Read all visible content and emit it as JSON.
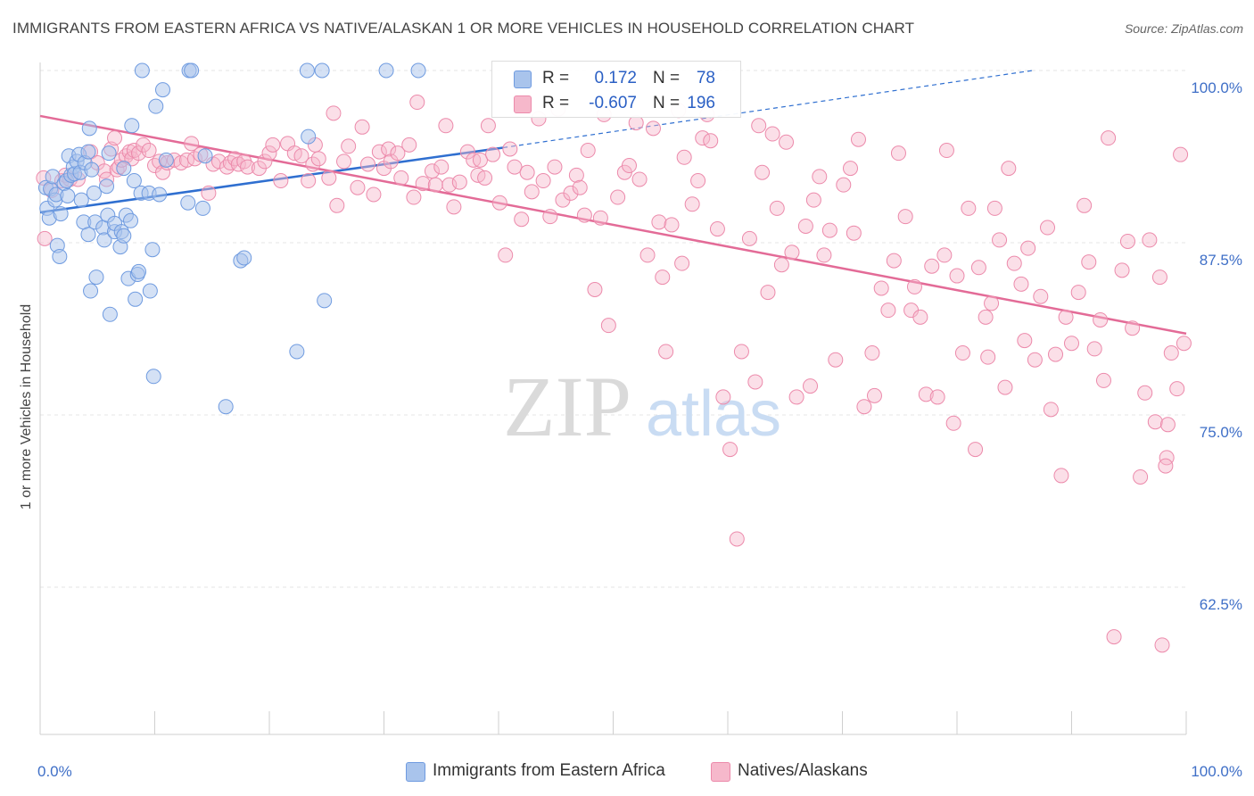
{
  "title": "IMMIGRANTS FROM EASTERN AFRICA VS NATIVE/ALASKAN 1 OR MORE VEHICLES IN HOUSEHOLD CORRELATION CHART",
  "source": "Source: ZipAtlas.com",
  "watermark": {
    "zip": "ZIP",
    "atlas": "atlas"
  },
  "legend": {
    "rows": [
      {
        "r_label": "R =",
        "r_value": "0.172",
        "n_label": "N =",
        "n_value": "78"
      },
      {
        "r_label": "R =",
        "r_value": "-0.607",
        "n_label": "N =",
        "n_value": "196"
      }
    ]
  },
  "chart_data": {
    "type": "scatter",
    "title": "IMMIGRANTS FROM EASTERN AFRICA VS NATIVE/ALASKAN 1 OR MORE VEHICLES IN HOUSEHOLD CORRELATION CHART",
    "xlabel": "",
    "ylabel": "1 or more Vehicles in Household",
    "x_tick_labels": [
      "0.0%",
      "100.0%"
    ],
    "y_tick_labels": [
      "100.0%",
      "87.5%",
      "75.0%",
      "62.5%"
    ],
    "y_tick_values": [
      100.0,
      87.5,
      75.0,
      62.5
    ],
    "xlim": [
      0,
      100
    ],
    "ylim": [
      53.5,
      101
    ],
    "grid": true,
    "legend_position": "top-center",
    "colors": {
      "blue_fill": "#a9c4ec",
      "blue_stroke": "#6f9be0",
      "blue_line": "#2f6fd0",
      "pink_fill": "#f6b8cb",
      "pink_stroke": "#ec8aab",
      "pink_line": "#e36b97",
      "tick_label": "#3f6fc7"
    },
    "series": [
      {
        "name": "Immigrants from Eastern Africa",
        "color": "#6f9be0",
        "trend": {
          "x": [
            0,
            40.4,
            86.6
          ],
          "y": [
            89.7,
            94.4,
            100.0
          ],
          "solid_until": 40.4
        },
        "points": [
          [
            0.5,
            91.5
          ],
          [
            0.6,
            90.0
          ],
          [
            0.8,
            89.3
          ],
          [
            0.9,
            91.4
          ],
          [
            1.1,
            92.3
          ],
          [
            1.3,
            90.6
          ],
          [
            1.4,
            91.0
          ],
          [
            1.5,
            87.3
          ],
          [
            1.7,
            86.5
          ],
          [
            1.8,
            89.6
          ],
          [
            2.1,
            91.8
          ],
          [
            2.3,
            92.0
          ],
          [
            2.4,
            90.9
          ],
          [
            2.5,
            93.8
          ],
          [
            2.7,
            92.4
          ],
          [
            2.9,
            93.0
          ],
          [
            3.0,
            92.5
          ],
          [
            3.2,
            93.4
          ],
          [
            3.4,
            93.9
          ],
          [
            3.5,
            92.6
          ],
          [
            3.6,
            90.6
          ],
          [
            3.8,
            89.0
          ],
          [
            3.9,
            93.3
          ],
          [
            4.2,
            88.1
          ],
          [
            4.2,
            94.1
          ],
          [
            4.3,
            95.8
          ],
          [
            4.4,
            84.0
          ],
          [
            4.5,
            92.8
          ],
          [
            4.7,
            91.1
          ],
          [
            4.8,
            89.0
          ],
          [
            4.9,
            85.0
          ],
          [
            5.5,
            88.6
          ],
          [
            5.6,
            87.7
          ],
          [
            5.8,
            91.6
          ],
          [
            5.9,
            89.5
          ],
          [
            6.0,
            94.0
          ],
          [
            6.1,
            82.3
          ],
          [
            6.5,
            88.3
          ],
          [
            6.5,
            88.9
          ],
          [
            7.0,
            87.2
          ],
          [
            7.1,
            88.3
          ],
          [
            7.3,
            88.0
          ],
          [
            7.3,
            92.9
          ],
          [
            7.5,
            89.5
          ],
          [
            7.7,
            84.9
          ],
          [
            7.9,
            89.1
          ],
          [
            8.0,
            96.0
          ],
          [
            8.2,
            92.0
          ],
          [
            8.3,
            83.4
          ],
          [
            8.5,
            85.2
          ],
          [
            8.6,
            85.4
          ],
          [
            8.8,
            91.1
          ],
          [
            8.9,
            100.0
          ],
          [
            9.5,
            91.1
          ],
          [
            9.6,
            84.0
          ],
          [
            9.8,
            87.0
          ],
          [
            9.9,
            77.8
          ],
          [
            10.1,
            97.4
          ],
          [
            10.4,
            91.0
          ],
          [
            10.7,
            98.6
          ],
          [
            11.0,
            93.5
          ],
          [
            12.9,
            90.4
          ],
          [
            13.0,
            100.0
          ],
          [
            13.2,
            100.0
          ],
          [
            14.2,
            90.0
          ],
          [
            14.4,
            93.8
          ],
          [
            16.2,
            75.6
          ],
          [
            17.5,
            86.2
          ],
          [
            17.8,
            86.4
          ],
          [
            22.4,
            79.6
          ],
          [
            23.3,
            100.0
          ],
          [
            23.4,
            95.2
          ],
          [
            24.6,
            100.0
          ],
          [
            24.8,
            83.3
          ],
          [
            30.2,
            100.0
          ],
          [
            33.0,
            100.0
          ]
        ]
      },
      {
        "name": "Natives/Alaskans",
        "color": "#ec8aab",
        "trend": {
          "x": [
            0,
            100
          ],
          "y": [
            96.7,
            80.9
          ]
        },
        "points": [
          [
            0.3,
            92.2
          ],
          [
            0.4,
            87.8
          ],
          [
            1.0,
            91.3
          ],
          [
            1.9,
            92.0
          ],
          [
            2.2,
            92.4
          ],
          [
            2.6,
            92.1
          ],
          [
            3.3,
            92.1
          ],
          [
            4.4,
            94.1
          ],
          [
            5.0,
            93.3
          ],
          [
            5.6,
            92.7
          ],
          [
            5.8,
            92.1
          ],
          [
            6.2,
            94.3
          ],
          [
            6.5,
            95.1
          ],
          [
            6.7,
            92.8
          ],
          [
            6.9,
            93.0
          ],
          [
            7.1,
            93.5
          ],
          [
            7.5,
            93.8
          ],
          [
            7.8,
            94.1
          ],
          [
            8.0,
            93.6
          ],
          [
            8.2,
            94.2
          ],
          [
            8.6,
            94.0
          ],
          [
            9.0,
            94.6
          ],
          [
            9.5,
            94.2
          ],
          [
            10.0,
            93.1
          ],
          [
            10.4,
            93.4
          ],
          [
            10.7,
            92.6
          ],
          [
            11.1,
            93.3
          ],
          [
            11.7,
            93.5
          ],
          [
            12.3,
            93.3
          ],
          [
            12.8,
            93.5
          ],
          [
            13.2,
            94.7
          ],
          [
            13.5,
            93.6
          ],
          [
            14.0,
            93.9
          ],
          [
            14.7,
            91.1
          ],
          [
            15.1,
            93.2
          ],
          [
            15.6,
            93.4
          ],
          [
            16.3,
            93.0
          ],
          [
            16.6,
            93.3
          ],
          [
            17.0,
            93.6
          ],
          [
            17.3,
            93.2
          ],
          [
            17.8,
            93.4
          ],
          [
            18.1,
            93.0
          ],
          [
            19.1,
            92.9
          ],
          [
            19.6,
            93.4
          ],
          [
            20.0,
            94.0
          ],
          [
            20.3,
            94.6
          ],
          [
            21.0,
            92.0
          ],
          [
            21.6,
            94.7
          ],
          [
            22.2,
            94.0
          ],
          [
            22.8,
            93.8
          ],
          [
            23.4,
            92.0
          ],
          [
            23.8,
            93.2
          ],
          [
            24.0,
            94.6
          ],
          [
            24.3,
            93.6
          ],
          [
            25.2,
            92.2
          ],
          [
            25.6,
            96.9
          ],
          [
            25.9,
            90.2
          ],
          [
            26.5,
            93.4
          ],
          [
            26.9,
            94.5
          ],
          [
            27.7,
            91.5
          ],
          [
            28.1,
            95.9
          ],
          [
            28.6,
            93.2
          ],
          [
            29.1,
            91.0
          ],
          [
            29.6,
            94.1
          ],
          [
            30.0,
            92.9
          ],
          [
            30.4,
            94.3
          ],
          [
            30.6,
            93.4
          ],
          [
            31.2,
            94.0
          ],
          [
            31.5,
            92.2
          ],
          [
            32.2,
            94.6
          ],
          [
            32.6,
            90.8
          ],
          [
            32.9,
            97.7
          ],
          [
            33.4,
            91.8
          ],
          [
            34.2,
            92.7
          ],
          [
            34.5,
            91.7
          ],
          [
            35.0,
            93.0
          ],
          [
            35.4,
            96.0
          ],
          [
            35.7,
            91.7
          ],
          [
            36.1,
            90.1
          ],
          [
            36.6,
            91.9
          ],
          [
            37.3,
            94.1
          ],
          [
            37.8,
            93.5
          ],
          [
            38.2,
            92.4
          ],
          [
            38.4,
            93.5
          ],
          [
            38.8,
            92.2
          ],
          [
            39.1,
            96.0
          ],
          [
            39.5,
            93.9
          ],
          [
            40.1,
            90.4
          ],
          [
            40.6,
            86.6
          ],
          [
            41.0,
            94.3
          ],
          [
            41.4,
            93.0
          ],
          [
            42.0,
            89.2
          ],
          [
            42.5,
            92.6
          ],
          [
            42.9,
            91.2
          ],
          [
            43.5,
            96.5
          ],
          [
            43.9,
            92.0
          ],
          [
            44.5,
            89.4
          ],
          [
            44.9,
            93.0
          ],
          [
            45.2,
            97.2
          ],
          [
            45.6,
            90.6
          ],
          [
            46.3,
            91.1
          ],
          [
            46.8,
            92.4
          ],
          [
            47.1,
            91.5
          ],
          [
            47.5,
            89.5
          ],
          [
            47.8,
            94.2
          ],
          [
            48.4,
            84.1
          ],
          [
            48.9,
            89.3
          ],
          [
            49.2,
            96.8
          ],
          [
            49.6,
            81.5
          ],
          [
            50.4,
            90.8
          ],
          [
            51.0,
            92.6
          ],
          [
            51.4,
            93.1
          ],
          [
            52.0,
            96.2
          ],
          [
            52.3,
            92.1
          ],
          [
            53.0,
            86.6
          ],
          [
            53.5,
            95.8
          ],
          [
            54.0,
            89.0
          ],
          [
            54.3,
            85.0
          ],
          [
            54.6,
            79.6
          ],
          [
            55.1,
            88.8
          ],
          [
            55.7,
            97.1
          ],
          [
            56.0,
            86.0
          ],
          [
            56.2,
            93.7
          ],
          [
            56.9,
            90.3
          ],
          [
            57.4,
            92.0
          ],
          [
            57.8,
            95.1
          ],
          [
            58.2,
            96.8
          ],
          [
            58.5,
            94.9
          ],
          [
            59.1,
            88.5
          ],
          [
            59.6,
            76.3
          ],
          [
            60.2,
            72.5
          ],
          [
            60.8,
            66.0
          ],
          [
            61.2,
            79.6
          ],
          [
            61.9,
            87.8
          ],
          [
            62.4,
            77.4
          ],
          [
            62.7,
            96.0
          ],
          [
            63.0,
            92.6
          ],
          [
            63.5,
            83.9
          ],
          [
            63.9,
            95.4
          ],
          [
            64.3,
            90.0
          ],
          [
            64.7,
            85.9
          ],
          [
            65.1,
            94.8
          ],
          [
            65.6,
            86.8
          ],
          [
            66.0,
            76.3
          ],
          [
            66.8,
            88.7
          ],
          [
            67.2,
            77.1
          ],
          [
            67.5,
            90.6
          ],
          [
            68.0,
            92.3
          ],
          [
            68.4,
            86.6
          ],
          [
            68.9,
            88.4
          ],
          [
            69.4,
            79.0
          ],
          [
            70.1,
            91.7
          ],
          [
            70.7,
            92.9
          ],
          [
            71.0,
            88.2
          ],
          [
            71.4,
            95.0
          ],
          [
            71.9,
            75.6
          ],
          [
            72.6,
            79.5
          ],
          [
            72.8,
            76.4
          ],
          [
            73.4,
            84.2
          ],
          [
            74.0,
            82.6
          ],
          [
            74.5,
            86.2
          ],
          [
            74.9,
            94.0
          ],
          [
            75.5,
            89.4
          ],
          [
            76.0,
            82.6
          ],
          [
            76.3,
            84.3
          ],
          [
            76.8,
            82.1
          ],
          [
            77.3,
            76.5
          ],
          [
            77.8,
            85.8
          ],
          [
            78.3,
            76.3
          ],
          [
            78.9,
            86.6
          ],
          [
            79.1,
            94.2
          ],
          [
            79.7,
            74.4
          ],
          [
            80.0,
            85.1
          ],
          [
            80.5,
            79.5
          ],
          [
            81.0,
            90.0
          ],
          [
            81.6,
            72.5
          ],
          [
            81.9,
            85.7
          ],
          [
            82.5,
            82.1
          ],
          [
            82.7,
            79.2
          ],
          [
            83.0,
            83.1
          ],
          [
            83.3,
            90.0
          ],
          [
            83.7,
            87.7
          ],
          [
            84.2,
            77.0
          ],
          [
            84.5,
            92.9
          ],
          [
            85.0,
            86.0
          ],
          [
            85.6,
            84.5
          ],
          [
            85.9,
            80.4
          ],
          [
            86.2,
            87.1
          ],
          [
            86.8,
            79.0
          ],
          [
            87.3,
            83.6
          ],
          [
            87.9,
            88.6
          ],
          [
            88.2,
            75.4
          ],
          [
            88.6,
            79.4
          ],
          [
            89.1,
            70.6
          ],
          [
            89.5,
            82.1
          ],
          [
            90.0,
            80.2
          ],
          [
            90.6,
            83.9
          ],
          [
            91.1,
            90.2
          ],
          [
            91.5,
            86.1
          ],
          [
            92.0,
            79.8
          ],
          [
            92.5,
            81.9
          ],
          [
            92.8,
            77.5
          ],
          [
            93.2,
            95.1
          ],
          [
            93.7,
            58.9
          ],
          [
            94.4,
            85.5
          ],
          [
            94.9,
            87.6
          ],
          [
            95.3,
            81.3
          ],
          [
            96.0,
            70.5
          ],
          [
            96.4,
            76.6
          ],
          [
            96.8,
            87.7
          ],
          [
            97.3,
            74.5
          ],
          [
            97.7,
            85.0
          ],
          [
            98.3,
            71.9
          ],
          [
            98.7,
            79.5
          ],
          [
            99.2,
            76.9
          ],
          [
            99.5,
            93.9
          ],
          [
            99.8,
            80.2
          ],
          [
            97.9,
            58.3
          ],
          [
            98.2,
            71.3
          ],
          [
            98.4,
            74.3
          ]
        ]
      }
    ]
  },
  "bottom_legend": {
    "items": [
      {
        "label": "Immigrants from Eastern Africa"
      },
      {
        "label": "Natives/Alaskans"
      }
    ]
  }
}
